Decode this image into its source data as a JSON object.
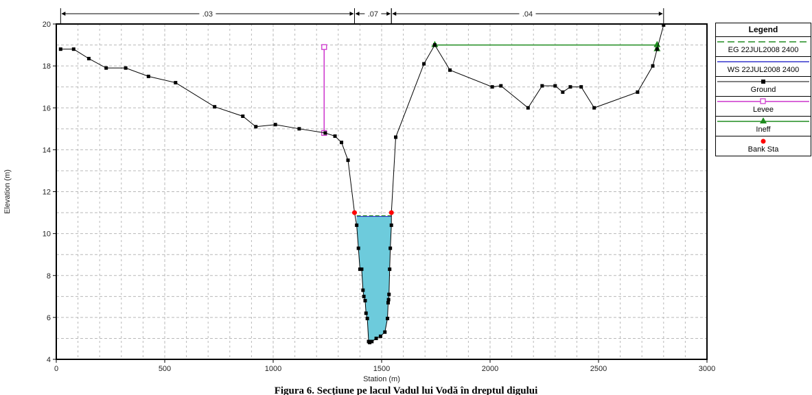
{
  "chart_data": {
    "type": "line",
    "xlabel": "Station (m)",
    "ylabel": "Elevation (m)",
    "xlim": [
      0,
      3000
    ],
    "ylim": [
      4,
      20
    ],
    "x_ticks": [
      0,
      500,
      1000,
      1500,
      2000,
      2500,
      3000
    ],
    "y_ticks": [
      4,
      6,
      8,
      10,
      12,
      14,
      16,
      18,
      20
    ],
    "grid": true,
    "legend_position": "right",
    "manning_n": [
      {
        "label": ".03",
        "x_start": 20,
        "x_end": 1375
      },
      {
        "label": ".07",
        "x_start": 1375,
        "x_end": 1545
      },
      {
        "label": ".04",
        "x_start": 1545,
        "x_end": 2800
      }
    ],
    "series": [
      {
        "name": "Ground",
        "color": "#000000",
        "points": [
          [
            20,
            18.8
          ],
          [
            80,
            18.8
          ],
          [
            150,
            18.35
          ],
          [
            230,
            17.9
          ],
          [
            320,
            17.9
          ],
          [
            425,
            17.5
          ],
          [
            550,
            17.2
          ],
          [
            730,
            16.05
          ],
          [
            860,
            15.6
          ],
          [
            920,
            15.1
          ],
          [
            1010,
            15.2
          ],
          [
            1120,
            15.0
          ],
          [
            1240,
            14.8
          ],
          [
            1285,
            14.65
          ],
          [
            1315,
            14.35
          ],
          [
            1345,
            13.5
          ],
          [
            1375,
            11.0
          ],
          [
            1385,
            10.4
          ],
          [
            1393,
            9.3
          ],
          [
            1400,
            8.3
          ],
          [
            1408,
            8.3
          ],
          [
            1414,
            7.3
          ],
          [
            1418,
            7.0
          ],
          [
            1424,
            6.8
          ],
          [
            1428,
            6.2
          ],
          [
            1434,
            5.95
          ],
          [
            1440,
            4.85
          ],
          [
            1445,
            4.8
          ],
          [
            1455,
            4.85
          ],
          [
            1475,
            5.0
          ],
          [
            1495,
            5.1
          ],
          [
            1515,
            5.3
          ],
          [
            1527,
            5.95
          ],
          [
            1530,
            6.7
          ],
          [
            1532,
            6.85
          ],
          [
            1534,
            7.1
          ],
          [
            1537,
            8.3
          ],
          [
            1540,
            9.3
          ],
          [
            1545,
            10.4
          ],
          [
            1545,
            11.0
          ],
          [
            1565,
            14.6
          ],
          [
            1695,
            18.1
          ],
          [
            1745,
            19.0
          ],
          [
            1815,
            17.8
          ],
          [
            2010,
            17.0
          ],
          [
            2050,
            17.05
          ],
          [
            2175,
            16.0
          ],
          [
            2240,
            17.05
          ],
          [
            2300,
            17.05
          ],
          [
            2335,
            16.75
          ],
          [
            2370,
            17.0
          ],
          [
            2420,
            17.0
          ],
          [
            2480,
            16.0
          ],
          [
            2680,
            16.75
          ],
          [
            2750,
            18.0
          ],
          [
            2770,
            18.8
          ],
          [
            2800,
            19.95
          ]
        ]
      },
      {
        "name": "Levee",
        "color": "#cc33cc",
        "points": [
          [
            1235,
            18.9
          ],
          [
            1235,
            14.8
          ]
        ]
      },
      {
        "name": "Ineff",
        "color": "#1e8b1e",
        "points": [
          [
            1745,
            19.0
          ],
          [
            2770,
            19.0
          ]
        ]
      },
      {
        "name": "Bank Sta",
        "color": "#ff0000",
        "points": [
          [
            1375,
            11.0
          ],
          [
            1545,
            11.0
          ]
        ]
      },
      {
        "name": "EG 22JUL2008 2400",
        "color": "#1e8b1e",
        "water_elevation": 10.82
      },
      {
        "name": "WS 22JUL2008 2400",
        "color": "#3333cc",
        "water_elevation": 10.82
      }
    ],
    "legend_title": "Legend",
    "legend": [
      {
        "label": "EG 22JUL2008 2400",
        "symbol": "dashed",
        "color": "#1e8b1e"
      },
      {
        "label": "WS 22JUL2008 2400",
        "symbol": "solid",
        "color": "#3333cc"
      },
      {
        "label": "Ground",
        "symbol": "line-square",
        "color": "#000000"
      },
      {
        "label": "Levee",
        "symbol": "line-open-square",
        "color": "#cc33cc"
      },
      {
        "label": "Ineff",
        "symbol": "line-triangle",
        "color": "#1e8b1e"
      },
      {
        "label": "Bank Sta",
        "symbol": "dot",
        "color": "#ff0000"
      }
    ],
    "water_fill_color": "#6dcbdc"
  },
  "caption": "Figura 6. Secțiune pe lacul Vadul lui Vodă în dreptul digului"
}
